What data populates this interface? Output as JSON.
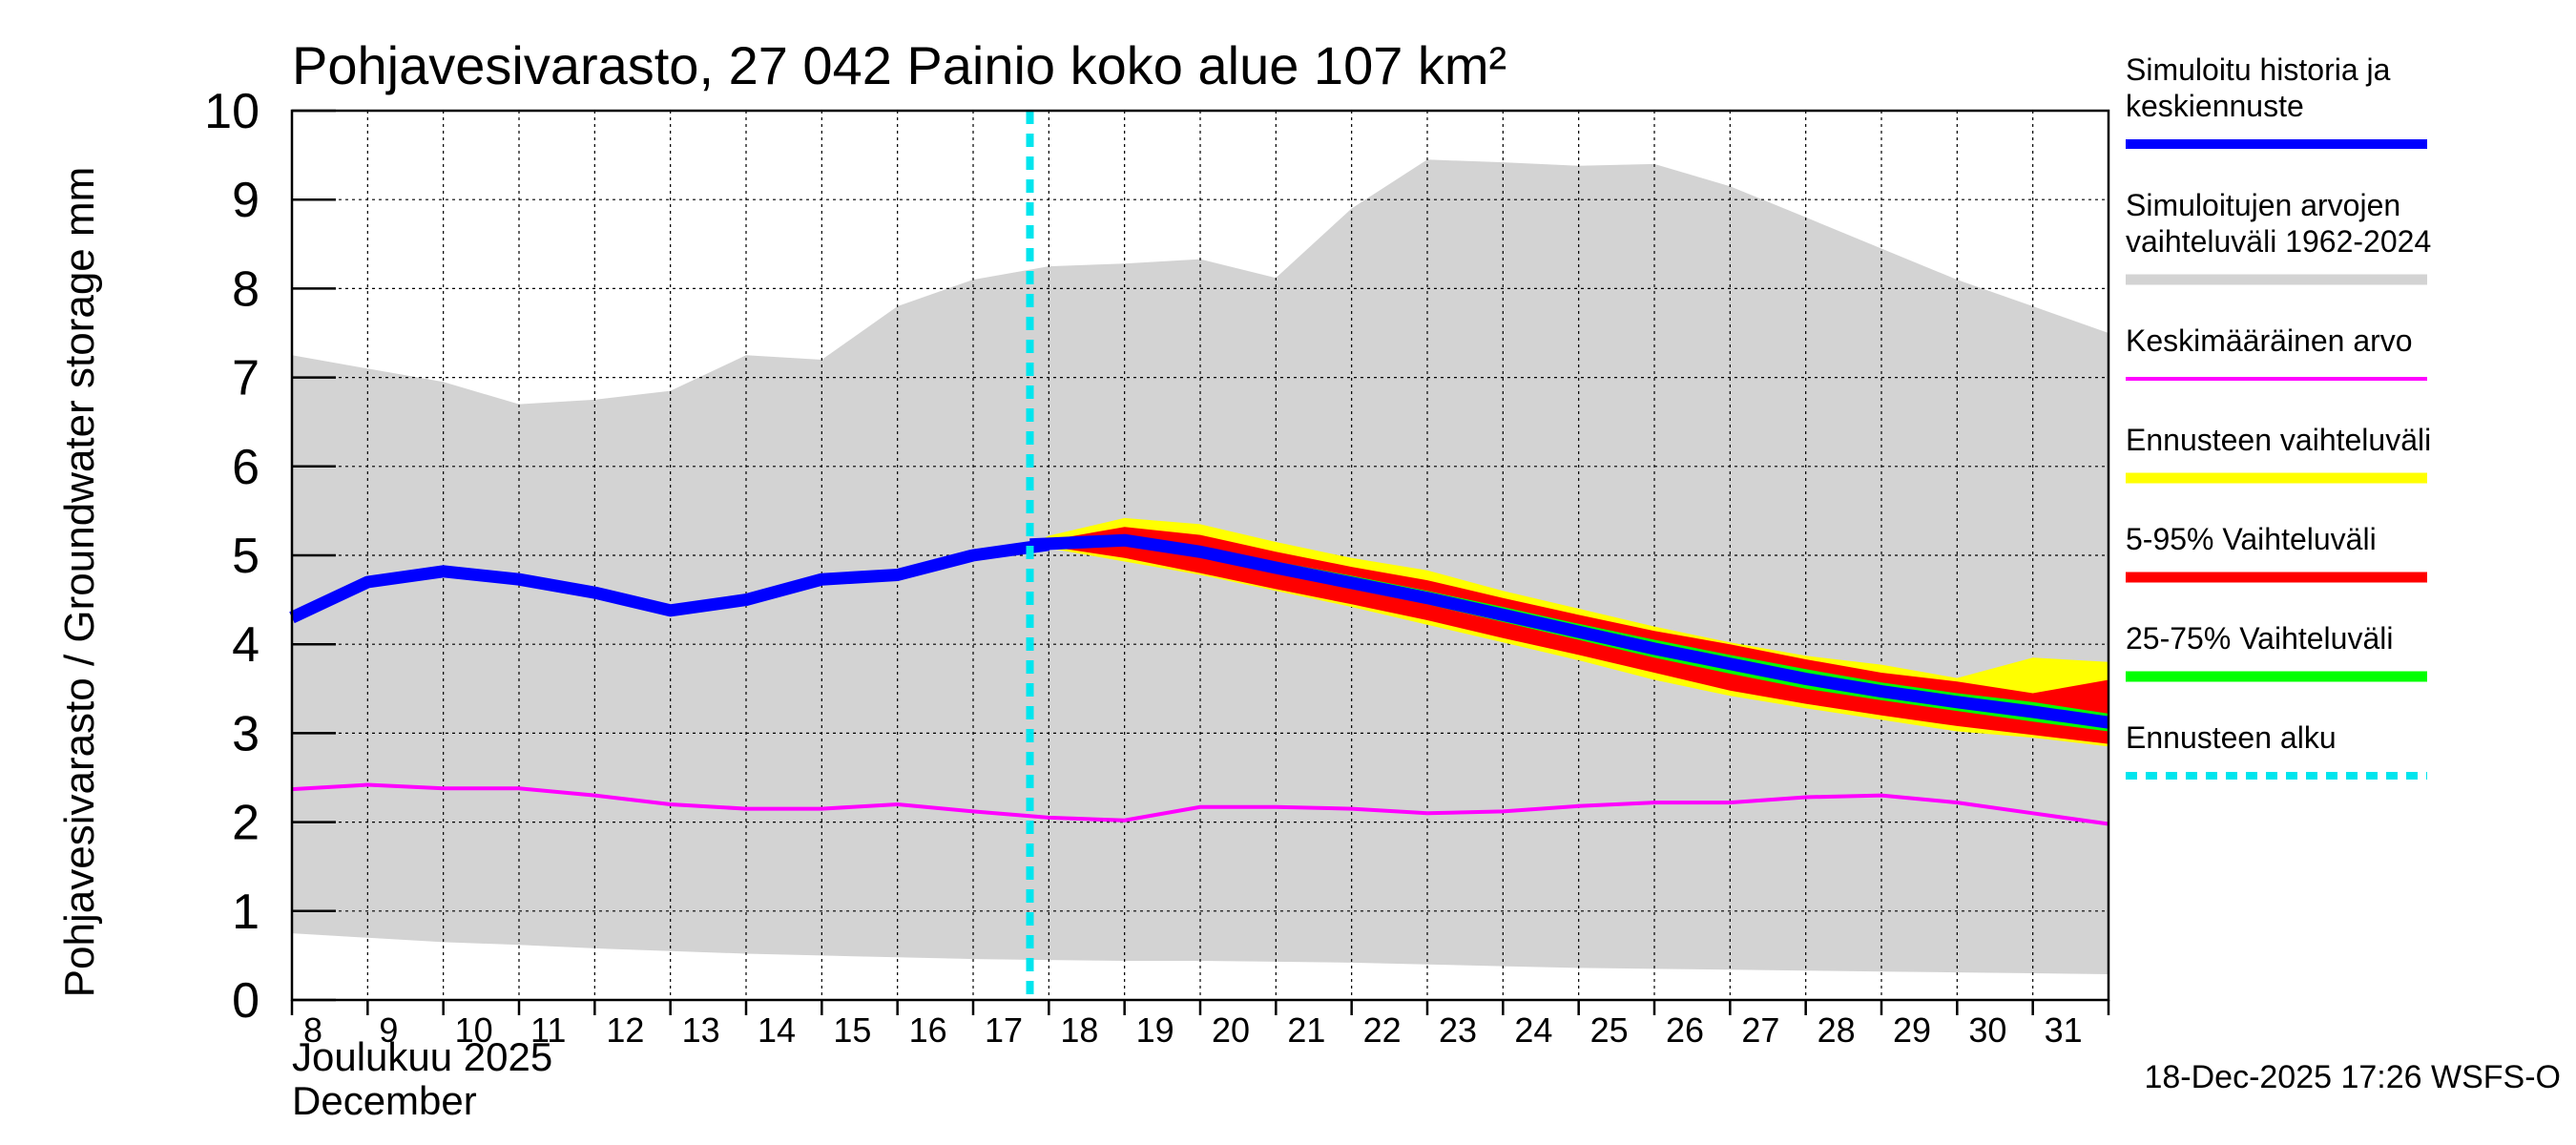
{
  "chart_data": {
    "type": "area",
    "title": "Pohjavesivarasto, 27 042 Painio koko alue 107 km²",
    "ylabel": "Pohjavesivarasto / Groundwater storage   mm",
    "xlabel_line1": "Joulukuu  2025",
    "xlabel_line2": "December",
    "timestamp": "18-Dec-2025 17:26 WSFS-O",
    "ylim": [
      0,
      10
    ],
    "yticks": [
      "0",
      "1",
      "2",
      "3",
      "4",
      "5",
      "6",
      "7",
      "8",
      "9",
      "10"
    ],
    "xlim": [
      8,
      32
    ],
    "xtick_labels": [
      "8",
      "9",
      "10",
      "11",
      "12",
      "13",
      "14",
      "15",
      "16",
      "17",
      "18",
      "19",
      "20",
      "21",
      "22",
      "23",
      "24",
      "25",
      "26",
      "27",
      "28",
      "29",
      "30",
      "31"
    ],
    "forecast_start": 17.75,
    "colors": {
      "history": "#0000ff",
      "range": "#d3d3d3",
      "mean": "#ff00ff",
      "forecast_range": "#ffff00",
      "p5_95": "#ff0000",
      "p25_75": "#00ff00",
      "forecast_start": "#00e5ee"
    },
    "legend": [
      {
        "key": "history",
        "label": "Simuloitu historia ja keskiennuste",
        "lines": [
          "Simuloitu historia ja",
          "keskiennuste"
        ],
        "color": "#0000ff",
        "style": "thick"
      },
      {
        "key": "range",
        "label": "Simuloitujen arvojen vaihteluväli 1962-2024",
        "lines": [
          "Simuloitujen arvojen",
          "vaihteluväli 1962-2024"
        ],
        "color": "#d3d3d3",
        "style": "band"
      },
      {
        "key": "mean",
        "label": "Keskimääräinen arvo",
        "lines": [
          "Keskimääräinen arvo"
        ],
        "color": "#ff00ff",
        "style": "thin"
      },
      {
        "key": "forecast_range",
        "label": "Ennusteen vaihteluväli",
        "lines": [
          "Ennusteen vaihteluväli"
        ],
        "color": "#ffff00",
        "style": "band"
      },
      {
        "key": "p5_95",
        "label": "5-95% Vaihteluväli",
        "lines": [
          "5-95% Vaihteluväli"
        ],
        "color": "#ff0000",
        "style": "band"
      },
      {
        "key": "p25_75",
        "label": "25-75% Vaihteluväli",
        "lines": [
          "25-75% Vaihteluväli"
        ],
        "color": "#00ff00",
        "style": "band"
      },
      {
        "key": "forecast_start",
        "label": "Ennusteen alku",
        "lines": [
          "Ennusteen alku"
        ],
        "color": "#00e5ee",
        "style": "dashed"
      }
    ],
    "series": {
      "range_upper": {
        "x": [
          8,
          9,
          10,
          11,
          12,
          13,
          14,
          15,
          16,
          17,
          18,
          19,
          20,
          21,
          22,
          23,
          24,
          25,
          26,
          27,
          28,
          29,
          30,
          31,
          32
        ],
        "y": [
          7.25,
          7.1,
          6.95,
          6.7,
          6.75,
          6.85,
          7.25,
          7.2,
          7.8,
          8.1,
          8.25,
          8.28,
          8.33,
          8.12,
          8.9,
          9.45,
          9.42,
          9.38,
          9.4,
          9.15,
          8.8,
          8.45,
          8.1,
          7.8,
          7.5
        ]
      },
      "range_lower": {
        "x": [
          8,
          9,
          10,
          11,
          12,
          13,
          14,
          15,
          16,
          17,
          18,
          19,
          20,
          21,
          22,
          23,
          24,
          25,
          26,
          27,
          28,
          29,
          30,
          31,
          32
        ],
        "y": [
          0.75,
          0.7,
          0.65,
          0.62,
          0.58,
          0.55,
          0.52,
          0.5,
          0.48,
          0.46,
          0.45,
          0.44,
          0.44,
          0.43,
          0.42,
          0.4,
          0.38,
          0.36,
          0.35,
          0.34,
          0.33,
          0.32,
          0.31,
          0.3,
          0.29
        ]
      },
      "mean": {
        "x": [
          8,
          9,
          10,
          11,
          12,
          13,
          14,
          15,
          16,
          17,
          18,
          19,
          20,
          21,
          22,
          23,
          24,
          25,
          26,
          27,
          28,
          29,
          30,
          31,
          32
        ],
        "y": [
          2.37,
          2.42,
          2.38,
          2.38,
          2.3,
          2.2,
          2.15,
          2.15,
          2.2,
          2.12,
          2.05,
          2.02,
          2.17,
          2.17,
          2.15,
          2.1,
          2.12,
          2.18,
          2.22,
          2.22,
          2.28,
          2.3,
          2.22,
          2.1,
          1.98
        ]
      },
      "history": {
        "x": [
          8,
          9,
          10,
          11,
          12,
          13,
          14,
          15,
          16,
          17,
          18
        ],
        "y": [
          4.3,
          4.7,
          4.82,
          4.73,
          4.58,
          4.38,
          4.5,
          4.73,
          4.78,
          5.0,
          5.12
        ]
      },
      "forecast_x": [
        17.75,
        18,
        19,
        20,
        21,
        22,
        23,
        24,
        25,
        26,
        27,
        28,
        29,
        30,
        31,
        32
      ],
      "forecast_max": [
        5.12,
        5.22,
        5.42,
        5.35,
        5.15,
        4.97,
        4.83,
        4.6,
        4.4,
        4.2,
        4.02,
        3.87,
        3.77,
        3.62,
        3.85,
        3.8
      ],
      "forecast_min": [
        5.12,
        5.08,
        4.93,
        4.78,
        4.6,
        4.42,
        4.22,
        4.02,
        3.82,
        3.6,
        3.42,
        3.28,
        3.15,
        3.02,
        2.95,
        2.85
      ],
      "p95": [
        5.12,
        5.17,
        5.32,
        5.23,
        5.04,
        4.87,
        4.72,
        4.52,
        4.33,
        4.15,
        4.0,
        3.83,
        3.68,
        3.58,
        3.45,
        3.6
      ],
      "p5": [
        5.12,
        5.1,
        4.97,
        4.8,
        4.62,
        4.45,
        4.27,
        4.07,
        3.88,
        3.68,
        3.48,
        3.33,
        3.2,
        3.08,
        2.98,
        2.88
      ],
      "p75": [
        5.12,
        5.15,
        5.22,
        5.1,
        4.93,
        4.77,
        4.6,
        4.42,
        4.23,
        4.05,
        3.88,
        3.72,
        3.57,
        3.45,
        3.35,
        3.22
      ],
      "p25": [
        5.12,
        5.12,
        5.12,
        4.98,
        4.8,
        4.62,
        4.45,
        4.25,
        4.05,
        3.85,
        3.67,
        3.5,
        3.37,
        3.25,
        3.13,
        3.02
      ],
      "median": [
        5.12,
        5.13,
        5.17,
        5.04,
        4.86,
        4.69,
        4.52,
        4.33,
        4.14,
        3.95,
        3.78,
        3.61,
        3.47,
        3.35,
        3.24,
        3.12
      ]
    }
  }
}
